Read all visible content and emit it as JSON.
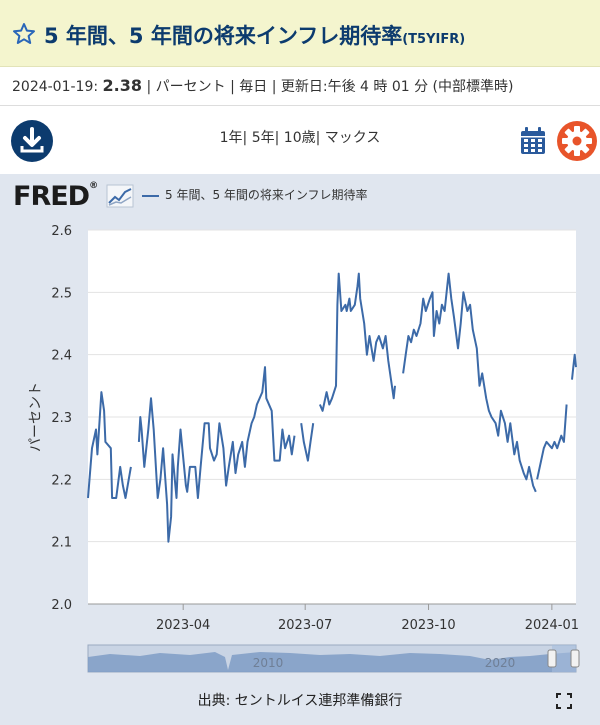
{
  "header": {
    "title": "5 年間、5 年間の将来インフレ期待率",
    "series_code": "(T5YIFR)",
    "meta_prefix": "2024-01-19:",
    "meta_value": "2.38",
    "meta_suffix": "| パーセント | 毎日 | 更新日:午後 4 時 01 分 (中部標準時)"
  },
  "toolbar": {
    "ranges": [
      "1年",
      "5年",
      "10歳",
      "マックス"
    ],
    "download_icon": "download-icon",
    "calendar_icon": "calendar-icon",
    "settings_icon": "gear-icon"
  },
  "brand": {
    "logo_text": "FRED"
  },
  "legend": {
    "label": "5 年間、5 年間の将来インフレ期待率"
  },
  "source": {
    "label": "出典: セントルイス連邦準備銀行"
  },
  "colors": {
    "line": "#3c6aa8",
    "title": "#0c3b6e",
    "title_bg": "#f4f5ce",
    "settings": "#e8542a"
  },
  "chart_data": {
    "type": "line",
    "title": "",
    "xlabel": "",
    "ylabel": "パーセント",
    "ylim": [
      2.0,
      2.6
    ],
    "yticks": [
      "2.0",
      "2.1",
      "2.2",
      "2.3",
      "2.4",
      "2.5",
      "2.6"
    ],
    "xlim": [
      "2023-01-20",
      "2024-01-19"
    ],
    "xticks": [
      {
        "date": "2023-04-01",
        "label": "2023-04"
      },
      {
        "date": "2023-07-01",
        "label": "2023-07"
      },
      {
        "date": "2023-10-01",
        "label": "2023-10"
      },
      {
        "date": "2024-01-01",
        "label": "2024-01"
      }
    ],
    "grid": true,
    "series": [
      {
        "name": "5 年間、5 年間の将来インフレ期待率",
        "points": [
          [
            "2023-01-20",
            2.17
          ],
          [
            "2023-01-23",
            2.25
          ],
          [
            "2023-01-26",
            2.28
          ],
          [
            "2023-01-27",
            2.24
          ],
          [
            "2023-01-30",
            2.34
          ],
          [
            "2023-02-01",
            2.31
          ],
          [
            "2023-02-02",
            2.26
          ],
          [
            "2023-02-06",
            2.25
          ],
          [
            "2023-02-07",
            2.17
          ],
          [
            "2023-02-10",
            2.17
          ],
          [
            "2023-02-13",
            2.22
          ],
          [
            "2023-02-15",
            2.19
          ],
          [
            "2023-02-17",
            2.17
          ],
          [
            "2023-02-21",
            2.22
          ],
          null,
          [
            "2023-02-27",
            2.26
          ],
          [
            "2023-02-28",
            2.3
          ],
          [
            "2023-03-01",
            2.28
          ],
          [
            "2023-03-03",
            2.22
          ],
          [
            "2023-03-06",
            2.28
          ],
          [
            "2023-03-08",
            2.33
          ],
          [
            "2023-03-10",
            2.28
          ],
          [
            "2023-03-13",
            2.17
          ],
          [
            "2023-03-15",
            2.2
          ],
          [
            "2023-03-17",
            2.25
          ],
          [
            "2023-03-20",
            2.16
          ],
          [
            "2023-03-21",
            2.1
          ],
          [
            "2023-03-23",
            2.14
          ],
          [
            "2023-03-24",
            2.24
          ],
          [
            "2023-03-27",
            2.17
          ],
          [
            "2023-03-28",
            2.22
          ],
          [
            "2023-03-30",
            2.28
          ],
          [
            "2023-04-03",
            2.19
          ],
          [
            "2023-04-04",
            2.18
          ],
          [
            "2023-04-06",
            2.22
          ],
          [
            "2023-04-10",
            2.22
          ],
          [
            "2023-04-12",
            2.17
          ],
          [
            "2023-04-14",
            2.22
          ],
          [
            "2023-04-17",
            2.29
          ],
          [
            "2023-04-20",
            2.29
          ],
          [
            "2023-04-21",
            2.25
          ],
          [
            "2023-04-24",
            2.23
          ],
          [
            "2023-04-26",
            2.24
          ],
          [
            "2023-04-28",
            2.29
          ],
          [
            "2023-05-01",
            2.25
          ],
          [
            "2023-05-03",
            2.19
          ],
          [
            "2023-05-05",
            2.22
          ],
          [
            "2023-05-08",
            2.26
          ],
          [
            "2023-05-10",
            2.21
          ],
          [
            "2023-05-12",
            2.24
          ],
          [
            "2023-05-15",
            2.26
          ],
          [
            "2023-05-17",
            2.22
          ],
          [
            "2023-05-19",
            2.26
          ],
          [
            "2023-05-22",
            2.29
          ],
          [
            "2023-05-24",
            2.3
          ],
          [
            "2023-05-26",
            2.32
          ],
          [
            "2023-05-30",
            2.34
          ],
          [
            "2023-06-01",
            2.38
          ],
          [
            "2023-06-02",
            2.33
          ],
          [
            "2023-06-06",
            2.31
          ],
          [
            "2023-06-08",
            2.23
          ],
          [
            "2023-06-12",
            2.23
          ],
          [
            "2023-06-14",
            2.28
          ],
          [
            "2023-06-16",
            2.25
          ],
          [
            "2023-06-19",
            2.27
          ],
          [
            "2023-06-21",
            2.24
          ],
          [
            "2023-06-23",
            2.27
          ],
          null,
          [
            "2023-06-28",
            2.29
          ],
          [
            "2023-06-30",
            2.26
          ],
          [
            "2023-07-03",
            2.23
          ],
          [
            "2023-07-05",
            2.26
          ],
          [
            "2023-07-07",
            2.29
          ],
          null,
          [
            "2023-07-12",
            2.32
          ],
          [
            "2023-07-14",
            2.31
          ],
          [
            "2023-07-17",
            2.34
          ],
          [
            "2023-07-19",
            2.32
          ],
          [
            "2023-07-21",
            2.33
          ],
          [
            "2023-07-24",
            2.35
          ],
          [
            "2023-07-25",
            2.48
          ],
          [
            "2023-07-26",
            2.53
          ],
          [
            "2023-07-28",
            2.47
          ],
          [
            "2023-07-31",
            2.48
          ],
          [
            "2023-08-01",
            2.47
          ],
          [
            "2023-08-03",
            2.49
          ],
          [
            "2023-08-04",
            2.47
          ],
          [
            "2023-08-07",
            2.48
          ],
          [
            "2023-08-09",
            2.51
          ],
          [
            "2023-08-10",
            2.53
          ],
          [
            "2023-08-11",
            2.49
          ],
          [
            "2023-08-14",
            2.45
          ],
          [
            "2023-08-16",
            2.4
          ],
          [
            "2023-08-18",
            2.43
          ],
          [
            "2023-08-21",
            2.39
          ],
          [
            "2023-08-23",
            2.42
          ],
          [
            "2023-08-25",
            2.43
          ],
          [
            "2023-08-28",
            2.41
          ],
          [
            "2023-08-30",
            2.43
          ],
          [
            "2023-09-01",
            2.39
          ],
          [
            "2023-09-05",
            2.33
          ],
          [
            "2023-09-06",
            2.35
          ],
          null,
          [
            "2023-09-12",
            2.37
          ],
          [
            "2023-09-14",
            2.4
          ],
          [
            "2023-09-16",
            2.43
          ],
          [
            "2023-09-18",
            2.42
          ],
          [
            "2023-09-20",
            2.44
          ],
          [
            "2023-09-22",
            2.43
          ],
          [
            "2023-09-25",
            2.45
          ],
          [
            "2023-09-27",
            2.49
          ],
          [
            "2023-09-29",
            2.47
          ],
          [
            "2023-10-02",
            2.49
          ],
          [
            "2023-10-04",
            2.5
          ],
          [
            "2023-10-05",
            2.43
          ],
          [
            "2023-10-07",
            2.47
          ],
          [
            "2023-10-09",
            2.45
          ],
          [
            "2023-10-11",
            2.48
          ],
          [
            "2023-10-13",
            2.47
          ],
          [
            "2023-10-16",
            2.53
          ],
          [
            "2023-10-18",
            2.49
          ],
          [
            "2023-10-20",
            2.46
          ],
          [
            "2023-10-23",
            2.41
          ],
          [
            "2023-10-25",
            2.45
          ],
          [
            "2023-10-27",
            2.5
          ],
          [
            "2023-10-30",
            2.47
          ],
          [
            "2023-11-01",
            2.48
          ],
          [
            "2023-11-03",
            2.44
          ],
          [
            "2023-11-06",
            2.41
          ],
          [
            "2023-11-08",
            2.35
          ],
          [
            "2023-11-10",
            2.37
          ],
          [
            "2023-11-13",
            2.33
          ],
          [
            "2023-11-15",
            2.31
          ],
          [
            "2023-11-17",
            2.3
          ],
          [
            "2023-11-20",
            2.29
          ],
          [
            "2023-11-22",
            2.27
          ],
          [
            "2023-11-24",
            2.31
          ],
          [
            "2023-11-27",
            2.29
          ],
          [
            "2023-11-29",
            2.26
          ],
          [
            "2023-12-01",
            2.29
          ],
          [
            "2023-12-04",
            2.24
          ],
          [
            "2023-12-06",
            2.26
          ],
          [
            "2023-12-08",
            2.23
          ],
          [
            "2023-12-11",
            2.21
          ],
          [
            "2023-12-13",
            2.2
          ],
          [
            "2023-12-15",
            2.22
          ],
          [
            "2023-12-18",
            2.19
          ],
          [
            "2023-12-20",
            2.18
          ],
          null,
          [
            "2023-12-21",
            2.2
          ],
          [
            "2023-12-26",
            2.25
          ],
          [
            "2023-12-28",
            2.26
          ],
          [
            "2024-01-01",
            2.25
          ],
          [
            "2024-01-03",
            2.26
          ],
          [
            "2024-01-05",
            2.25
          ],
          [
            "2024-01-08",
            2.27
          ],
          [
            "2024-01-10",
            2.26
          ],
          [
            "2024-01-12",
            2.32
          ],
          null,
          [
            "2024-01-16",
            2.36
          ],
          [
            "2024-01-17",
            2.38
          ],
          [
            "2024-01-18",
            2.4
          ],
          [
            "2024-01-19",
            2.38
          ]
        ]
      }
    ]
  },
  "navigator": {
    "labels": [
      "2010",
      "2020"
    ]
  }
}
